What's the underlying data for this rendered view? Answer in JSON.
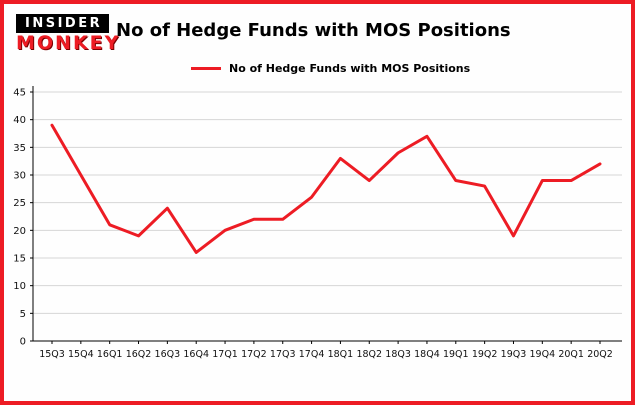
{
  "logo": {
    "line1": "INSIDER",
    "line2": "MONKEY"
  },
  "header": {
    "title": "No of Hedge Funds with MOS Positions"
  },
  "legend": {
    "label": "No of Hedge Funds with MOS Positions"
  },
  "colors": {
    "accent": "#ed1c24",
    "grid": "#d6d6d6",
    "axis": "#000000",
    "text": "#111111"
  },
  "chart_data": {
    "type": "line",
    "categories": [
      "15Q3",
      "15Q4",
      "16Q1",
      "16Q2",
      "16Q3",
      "16Q4",
      "17Q1",
      "17Q2",
      "17Q3",
      "17Q4",
      "18Q1",
      "18Q2",
      "18Q3",
      "18Q4",
      "19Q1",
      "19Q2",
      "19Q3",
      "19Q4",
      "20Q1",
      "20Q2"
    ],
    "values": [
      39,
      30,
      21,
      19,
      24,
      16,
      20,
      22,
      22,
      26,
      33,
      29,
      34,
      37,
      29,
      28,
      19,
      29,
      29,
      32
    ],
    "series_name": "No of Hedge Funds with MOS Positions",
    "title": "No of Hedge Funds with MOS Positions",
    "xlabel": "",
    "ylabel": "",
    "ylim": [
      0,
      45
    ],
    "ytick_step": 5,
    "grid": true,
    "legend_position": "top-left"
  }
}
